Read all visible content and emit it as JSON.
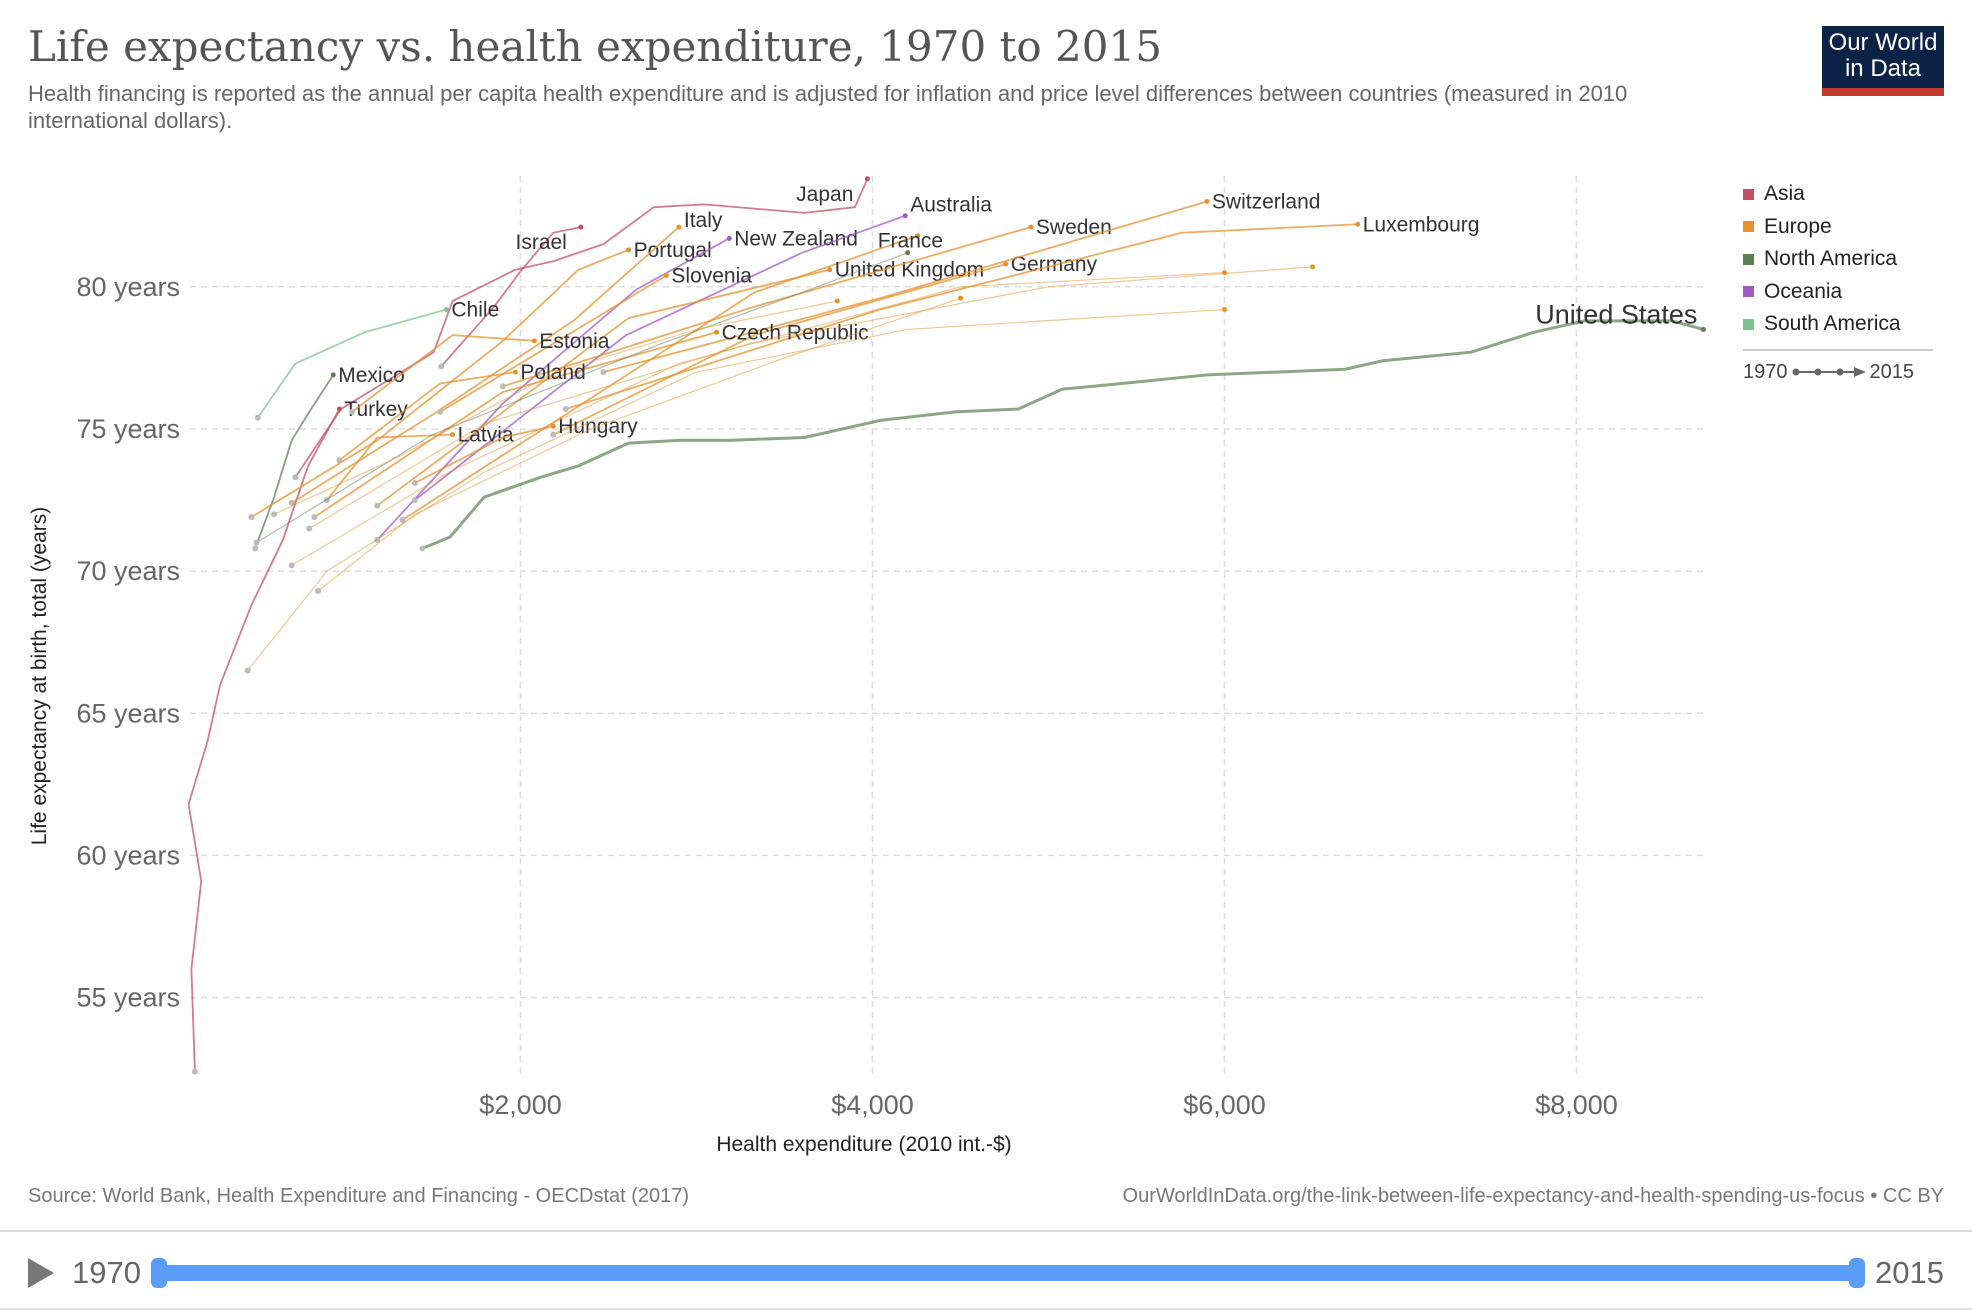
{
  "header": {
    "title": "Life expectancy vs. health expenditure, 1970 to 2015",
    "subtitle": "Health financing is reported as the annual per capita health expenditure and is adjusted for inflation and price level differences between countries (measured in 2010 international dollars).",
    "logo": "Our World in Data"
  },
  "chart_data": {
    "type": "line",
    "xlabel": "Health expenditure (2010 int.-$)",
    "ylabel": "Life expectancy at birth, total (years)",
    "xlim": [
      0,
      9600
    ],
    "ylim": [
      52,
      84.5
    ],
    "grid": true,
    "xticks": [
      {
        "v": 2000,
        "label": "$2,000"
      },
      {
        "v": 4000,
        "label": "$4,000"
      },
      {
        "v": 6000,
        "label": "$6,000"
      },
      {
        "v": 8000,
        "label": "$8,000"
      }
    ],
    "yticks": [
      {
        "v": 55,
        "label": "55 years"
      },
      {
        "v": 60,
        "label": "60 years"
      },
      {
        "v": 65,
        "label": "65 years"
      },
      {
        "v": 70,
        "label": "70 years"
      },
      {
        "v": 75,
        "label": "75 years"
      },
      {
        "v": 80,
        "label": "80 years"
      }
    ],
    "legend_position": "right",
    "regions": [
      {
        "name": "Asia",
        "color": "#c15065"
      },
      {
        "name": "Europe",
        "color": "#e5922e"
      },
      {
        "name": "North America",
        "color": "#5b8053"
      },
      {
        "name": "Oceania",
        "color": "#a05bc0"
      },
      {
        "name": "South America",
        "color": "#7fc38e"
      }
    ],
    "time_legend": {
      "start": "1970",
      "end": "2015"
    },
    "series": [
      {
        "name": "United States",
        "region": "North America",
        "points": [
          [
            1443,
            70.8
          ],
          [
            1600,
            71.2
          ],
          [
            1793,
            72.6
          ],
          [
            2114,
            73.3
          ],
          [
            2329,
            73.7
          ],
          [
            2614,
            74.5
          ],
          [
            2900,
            74.6
          ],
          [
            3186,
            74.6
          ],
          [
            3614,
            74.7
          ],
          [
            4043,
            75.3
          ],
          [
            4471,
            75.6
          ],
          [
            4829,
            75.7
          ],
          [
            5079,
            76.4
          ],
          [
            5257,
            76.5
          ],
          [
            5900,
            76.9
          ],
          [
            6686,
            77.1
          ],
          [
            6900,
            77.4
          ],
          [
            7400,
            77.7
          ],
          [
            7757,
            78.4
          ],
          [
            8043,
            78.8
          ],
          [
            8543,
            78.8
          ],
          [
            8721,
            78.5
          ]
        ]
      },
      {
        "name": "Japan",
        "region": "Asia",
        "points": [
          [
            721,
            73.3
          ],
          [
            980,
            75.7
          ],
          [
            1507,
            77.7
          ],
          [
            1614,
            79.5
          ],
          [
            1971,
            80.6
          ],
          [
            2186,
            80.9
          ],
          [
            2471,
            81.5
          ],
          [
            2757,
            82.8
          ],
          [
            3043,
            82.9
          ],
          [
            3614,
            82.6
          ],
          [
            3900,
            82.8
          ],
          [
            3971,
            83.8
          ]
        ]
      },
      {
        "name": "Turkey",
        "region": "Asia",
        "points": [
          [
            150,
            52.4
          ],
          [
            130,
            56
          ],
          [
            186,
            59.1
          ],
          [
            114,
            61.8
          ],
          [
            221,
            64
          ],
          [
            293,
            66
          ],
          [
            471,
            68.8
          ],
          [
            650,
            71.1
          ],
          [
            793,
            73.7
          ],
          [
            971,
            75.7
          ]
        ]
      },
      {
        "name": "Israel",
        "region": "Asia",
        "points": [
          [
            1550,
            77.2
          ],
          [
            1850,
            79.3
          ],
          [
            2007,
            80.6
          ],
          [
            2186,
            81.9
          ],
          [
            2343,
            82.1
          ]
        ]
      },
      {
        "name": "Mexico",
        "region": "North America",
        "points": [
          [
            493,
            70.8
          ],
          [
            600,
            72.6
          ],
          [
            700,
            74.6
          ],
          [
            800,
            75.6
          ],
          [
            936,
            76.9
          ]
        ]
      },
      {
        "name": "Chile",
        "region": "South America",
        "points": [
          [
            507,
            75.4
          ],
          [
            721,
            77.3
          ],
          [
            1114,
            78.4
          ],
          [
            1579,
            79.2
          ]
        ]
      },
      {
        "name": "Portugal",
        "region": "Europe",
        "points": [
          [
            471,
            71.9
          ],
          [
            1186,
            74.6
          ],
          [
            1900,
            78.1
          ],
          [
            2329,
            80.6
          ],
          [
            2614,
            81.3
          ]
        ]
      },
      {
        "name": "Italy",
        "region": "Europe",
        "points": [
          [
            700,
            72.4
          ],
          [
            1500,
            75.5
          ],
          [
            2300,
            78.8
          ],
          [
            2900,
            82.1
          ]
        ]
      },
      {
        "name": "New Zealand",
        "region": "Oceania",
        "points": [
          [
            1186,
            71.1
          ],
          [
            1900,
            75.9
          ],
          [
            2657,
            79.9
          ],
          [
            3186,
            81.7
          ]
        ]
      },
      {
        "name": "Australia",
        "region": "Oceania",
        "points": [
          [
            1400,
            72.5
          ],
          [
            2600,
            78.3
          ],
          [
            3600,
            81.2
          ],
          [
            4186,
            82.5
          ]
        ]
      },
      {
        "name": "France",
        "region": "Europe",
        "points": [
          [
            1330,
            71.8
          ],
          [
            3329,
            79.8
          ],
          [
            4257,
            81.8
          ]
        ]
      },
      {
        "name": "United Kingdom",
        "region": "Europe",
        "points": [
          [
            1186,
            72.3
          ],
          [
            2614,
            78.9
          ],
          [
            3757,
            80.6
          ]
        ]
      },
      {
        "name": "Germany",
        "region": "Europe",
        "points": [
          [
            2186,
            74.8
          ],
          [
            3329,
            78.3
          ],
          [
            4757,
            80.8
          ]
        ]
      },
      {
        "name": "Sweden",
        "region": "Europe",
        "points": [
          [
            1900,
            76.5
          ],
          [
            3329,
            79.3
          ],
          [
            4900,
            82.1
          ]
        ]
      },
      {
        "name": "Switzerland",
        "region": "Europe",
        "points": [
          [
            2471,
            77.0
          ],
          [
            4043,
            79.6
          ],
          [
            5900,
            83.0
          ]
        ]
      },
      {
        "name": "Luxembourg",
        "region": "Europe",
        "points": [
          [
            2257,
            75.7
          ],
          [
            4043,
            79.2
          ],
          [
            5757,
            81.9
          ],
          [
            6757,
            82.2
          ]
        ]
      },
      {
        "name": "Slovenia",
        "region": "Europe",
        "points": [
          [
            1543,
            75.6
          ],
          [
            2829,
            80.4
          ]
        ]
      },
      {
        "name": "Czech Republic",
        "region": "Europe",
        "points": [
          [
            829,
            71.9
          ],
          [
            1900,
            76.3
          ],
          [
            3114,
            78.4
          ]
        ]
      },
      {
        "name": "Estonia",
        "region": "Europe",
        "points": [
          [
            1043,
            75.6
          ],
          [
            1614,
            78.3
          ],
          [
            2079,
            78.1
          ]
        ]
      },
      {
        "name": "Poland",
        "region": "Europe",
        "points": [
          [
            971,
            73.9
          ],
          [
            1543,
            76.6
          ],
          [
            1971,
            77.0
          ]
        ]
      },
      {
        "name": "Latvia",
        "region": "Europe",
        "points": [
          [
            900,
            72.5
          ],
          [
            1186,
            74.7
          ],
          [
            1614,
            74.8
          ]
        ]
      },
      {
        "name": "Hungary",
        "region": "Europe",
        "points": [
          [
            1400,
            73.1
          ],
          [
            1900,
            74.7
          ],
          [
            2186,
            75.1
          ]
        ]
      },
      {
        "name": "",
        "region": "North America",
        "points": [
          [
            500,
            71.0
          ],
          [
            1500,
            74.8
          ],
          [
            2800,
            78.0
          ],
          [
            3600,
            79.8
          ],
          [
            4200,
            81.2
          ]
        ]
      },
      {
        "name": "",
        "region": "Europe",
        "points": [
          [
            850,
            69.3
          ],
          [
            1400,
            72.0
          ],
          [
            2400,
            75.0
          ],
          [
            3500,
            77.5
          ],
          [
            4500,
            79.6
          ]
        ]
      },
      {
        "name": "",
        "region": "Europe",
        "points": [
          [
            700,
            70.2
          ],
          [
            1600,
            73.5
          ],
          [
            2900,
            77.3
          ],
          [
            4500,
            80.0
          ],
          [
            6000,
            80.5
          ]
        ]
      },
      {
        "name": "",
        "region": "Europe",
        "points": [
          [
            450,
            66.5
          ],
          [
            900,
            70.0
          ],
          [
            1800,
            73.5
          ],
          [
            3000,
            77.0
          ],
          [
            4200,
            78.5
          ],
          [
            6000,
            79.2
          ]
        ]
      },
      {
        "name": "",
        "region": "Europe",
        "points": [
          [
            800,
            71.5
          ],
          [
            1800,
            75.2
          ],
          [
            3300,
            78.0
          ],
          [
            5000,
            80.0
          ],
          [
            6500,
            80.7
          ]
        ]
      },
      {
        "name": "",
        "region": "Europe",
        "points": [
          [
            600,
            72.0
          ],
          [
            1300,
            74.0
          ],
          [
            2200,
            77.0
          ],
          [
            3000,
            78.5
          ],
          [
            3800,
            79.5
          ]
        ]
      }
    ]
  },
  "footer": {
    "source": "Source: World Bank, Health Expenditure and Financing - OECDstat (2017)",
    "url": "OurWorldInData.org/the-link-between-life-expectancy-and-health-spending-us-focus • CC BY"
  },
  "timeline": {
    "start": "1970",
    "end": "2015",
    "progress": 1.0
  }
}
